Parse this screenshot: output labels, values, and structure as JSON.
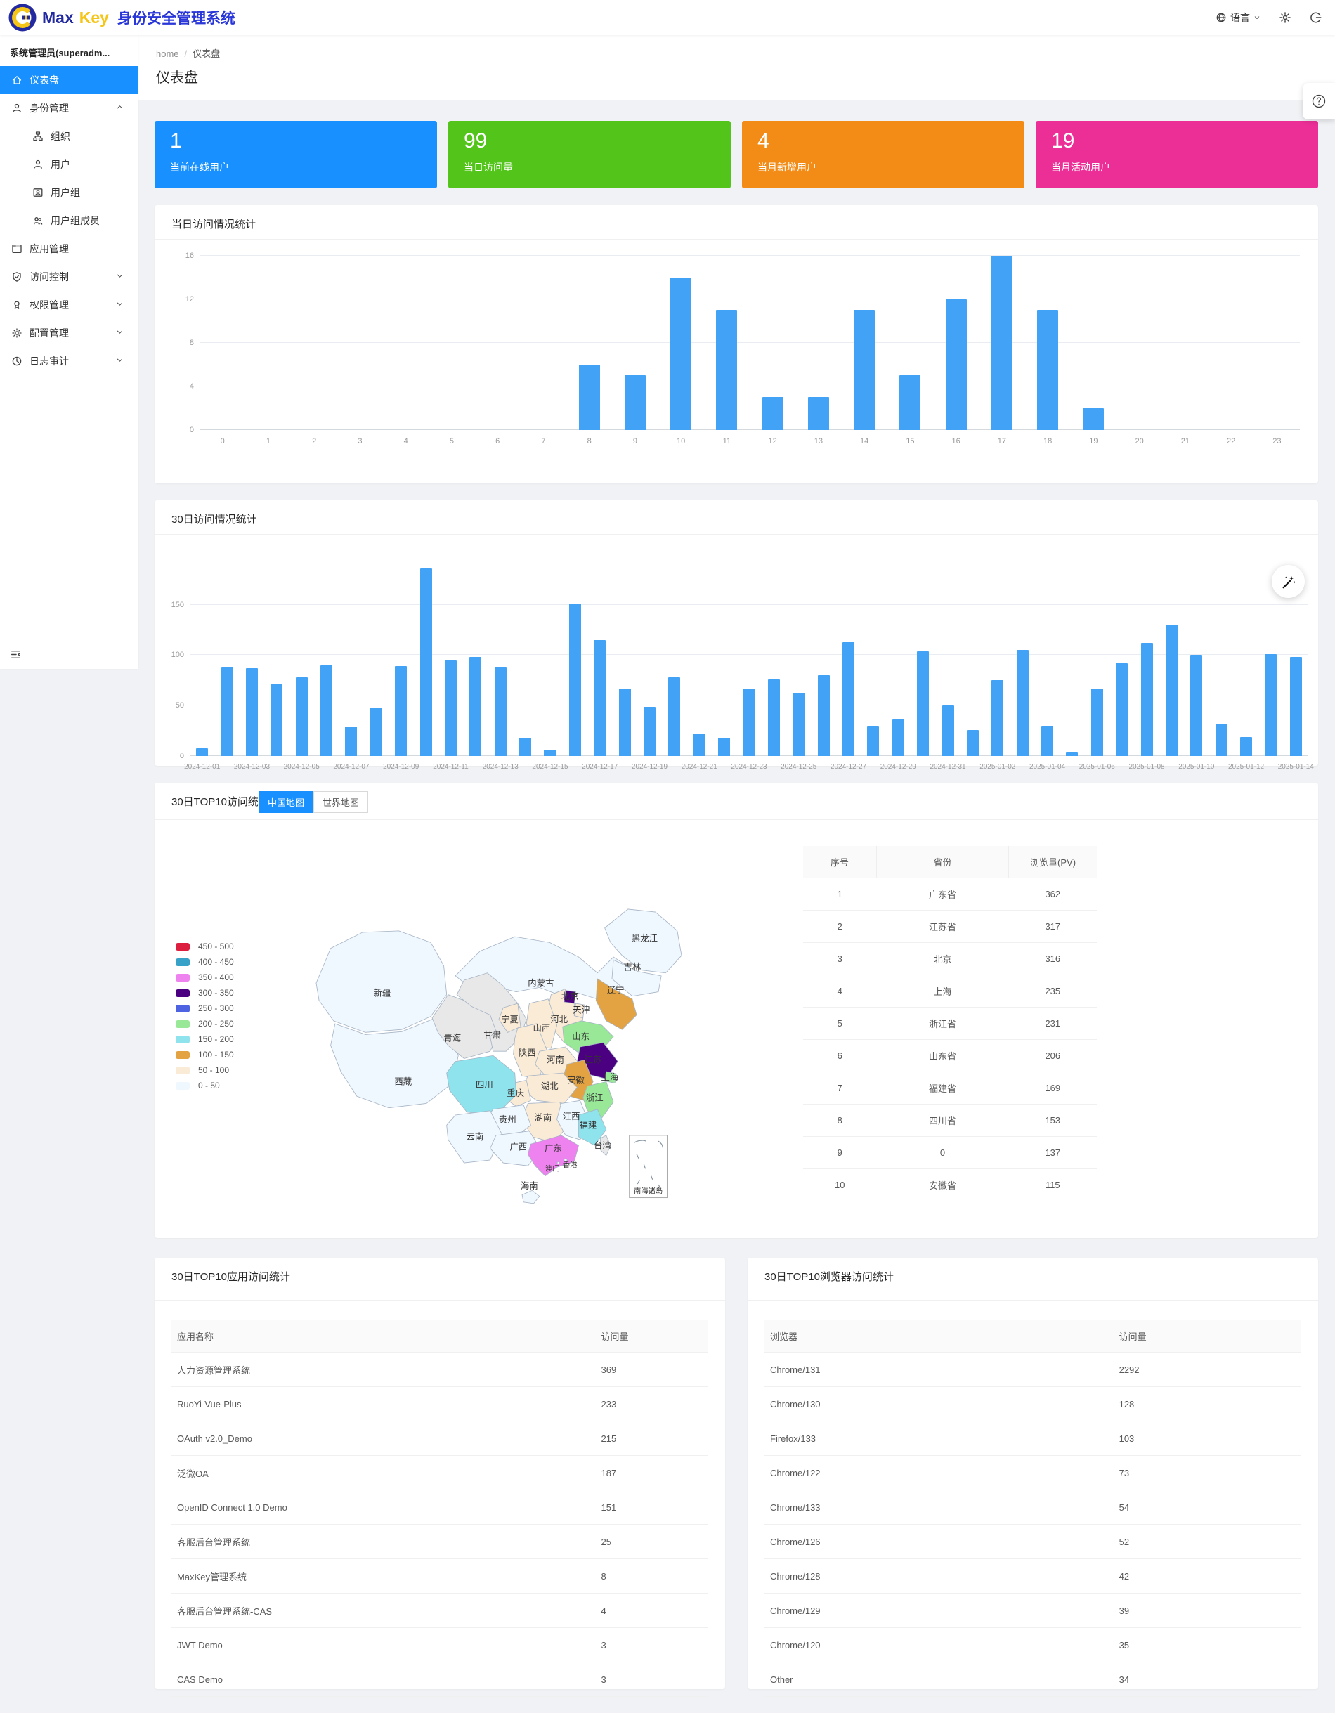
{
  "header": {
    "logo_max": "Max",
    "logo_key": "Key",
    "app_title": "身份安全管理系统",
    "language_label": "语言"
  },
  "sidebar": {
    "user": "系统管理员(superadm...",
    "items": [
      {
        "key": "dashboard",
        "icon": "home",
        "label": "仪表盘",
        "selected": true
      },
      {
        "key": "identity",
        "icon": "user",
        "label": "身份管理",
        "caret": "up"
      },
      {
        "key": "org",
        "icon": "org",
        "label": "组织",
        "sub": true
      },
      {
        "key": "users",
        "icon": "user",
        "label": "用户",
        "sub": true
      },
      {
        "key": "usergroup",
        "icon": "idcard",
        "label": "用户组",
        "sub": true
      },
      {
        "key": "groupmembers",
        "icon": "team",
        "label": "用户组成员",
        "sub": true
      },
      {
        "key": "apps",
        "icon": "appstore",
        "label": "应用管理"
      },
      {
        "key": "access",
        "icon": "shield",
        "label": "访问控制",
        "caret": "down"
      },
      {
        "key": "perm",
        "icon": "medal",
        "label": "权限管理",
        "caret": "down"
      },
      {
        "key": "config",
        "icon": "gear",
        "label": "配置管理",
        "caret": "down"
      },
      {
        "key": "audit",
        "icon": "clock",
        "label": "日志审计",
        "caret": "down"
      }
    ]
  },
  "breadcrumb": {
    "home": "home",
    "sep": "/",
    "current": "仪表盘"
  },
  "page": {
    "title": "仪表盘"
  },
  "stats": [
    {
      "value": "1",
      "label": "当前在线用户",
      "color": "#1890FF"
    },
    {
      "value": "99",
      "label": "当日访问量",
      "color": "#52C41A"
    },
    {
      "value": "4",
      "label": "当月新增用户",
      "color": "#F28C16"
    },
    {
      "value": "19",
      "label": "当月活动用户",
      "color": "#EB2F96"
    }
  ],
  "chart_data": [
    {
      "type": "bar",
      "title": "当日访问情况统计",
      "categories": [
        0,
        1,
        2,
        3,
        4,
        5,
        6,
        7,
        8,
        9,
        10,
        11,
        12,
        13,
        14,
        15,
        16,
        17,
        18,
        19,
        20,
        21,
        22,
        23
      ],
      "values": [
        0,
        0,
        0,
        0,
        0,
        0,
        0,
        0,
        6,
        5,
        14,
        11,
        3,
        3,
        11,
        5,
        12,
        16,
        11,
        2,
        0,
        0,
        0,
        0
      ],
      "xlabel": "",
      "ylabel": "",
      "ylim": [
        0,
        16
      ],
      "yticks": [
        0,
        4,
        8,
        12,
        16
      ],
      "bar_color": "#42A2F5",
      "grid": true
    },
    {
      "type": "bar",
      "title": "30日访问情况统计",
      "categories": [
        "2024-12-01",
        "2024-12-02",
        "2024-12-03",
        "2024-12-04",
        "2024-12-05",
        "2024-12-06",
        "2024-12-07",
        "2024-12-08",
        "2024-12-09",
        "2024-12-10",
        "2024-12-11",
        "2024-12-12",
        "2024-12-13",
        "2024-12-14",
        "2024-12-15",
        "2024-12-16",
        "2024-12-17",
        "2024-12-18",
        "2024-12-19",
        "2024-12-20",
        "2024-12-21",
        "2024-12-22",
        "2024-12-23",
        "2024-12-24",
        "2024-12-25",
        "2024-12-26",
        "2024-12-27",
        "2024-12-28",
        "2024-12-29",
        "2024-12-30",
        "2024-12-31",
        "2025-01-01",
        "2025-01-02",
        "2025-01-03",
        "2025-01-04",
        "2025-01-05",
        "2025-01-06",
        "2025-01-07",
        "2025-01-08",
        "2025-01-09",
        "2025-01-10",
        "2025-01-11",
        "2025-01-12",
        "2025-01-13",
        "2025-01-14"
      ],
      "values": [
        8,
        88,
        87,
        72,
        78,
        90,
        29,
        48,
        89,
        186,
        95,
        98,
        88,
        18,
        6,
        151,
        115,
        67,
        49,
        78,
        22,
        18,
        67,
        76,
        63,
        80,
        113,
        30,
        36,
        104,
        50,
        26,
        75,
        105,
        30,
        4,
        67,
        92,
        112,
        130,
        100,
        32,
        19,
        101,
        98
      ],
      "xlabel": "",
      "ylabel": "",
      "ylim": [
        0,
        195
      ],
      "yticks": [
        0,
        50,
        100,
        150
      ],
      "bar_color": "#42A2F5",
      "grid": true,
      "xtick_every": 2
    },
    {
      "type": "heatmap",
      "subtype": "china-choropleth",
      "title": "30日TOP10访问统计",
      "tabs": [
        "中国地图",
        "世界地图"
      ],
      "active_tab": "中国地图",
      "legend_position": "left",
      "legend": [
        {
          "range": "450 - 500",
          "color": "#DC1F3E"
        },
        {
          "range": "400 - 450",
          "color": "#38A1C7"
        },
        {
          "range": "350 - 400",
          "color": "#EE82EE"
        },
        {
          "range": "300 - 350",
          "color": "#4B0082"
        },
        {
          "range": "250 - 300",
          "color": "#4D63E2"
        },
        {
          "range": "200 - 250",
          "color": "#98E898"
        },
        {
          "range": "150 - 200",
          "color": "#8FE3ED"
        },
        {
          "range": "100 - 150",
          "color": "#E3A343"
        },
        {
          "range": "50 - 100",
          "color": "#FAEBD7"
        },
        {
          "range": "0 - 50",
          "color": "#EFF7FF"
        }
      ],
      "table": {
        "headers": [
          "序号",
          "省份",
          "浏览量(PV)"
        ],
        "rows": [
          [
            "1",
            "广东省",
            "362"
          ],
          [
            "2",
            "江苏省",
            "317"
          ],
          [
            "3",
            "北京",
            "316"
          ],
          [
            "4",
            "上海",
            "235"
          ],
          [
            "5",
            "浙江省",
            "231"
          ],
          [
            "6",
            "山东省",
            "206"
          ],
          [
            "7",
            "福建省",
            "169"
          ],
          [
            "8",
            "四川省",
            "153"
          ],
          [
            "9",
            "0",
            "137"
          ],
          [
            "10",
            "安徽省",
            "115"
          ]
        ]
      }
    },
    {
      "type": "table",
      "title": "30日TOP10应用访问统计",
      "headers": [
        "应用名称",
        "访问量"
      ],
      "rows": [
        [
          "人力资源管理系统",
          "369"
        ],
        [
          "RuoYi-Vue-Plus",
          "233"
        ],
        [
          "OAuth v2.0_Demo",
          "215"
        ],
        [
          "泛微OA",
          "187"
        ],
        [
          "OpenID Connect 1.0 Demo",
          "151"
        ],
        [
          "客服后台管理系统",
          "25"
        ],
        [
          "MaxKey管理系统",
          "8"
        ],
        [
          "客服后台管理系统-CAS",
          "4"
        ],
        [
          "JWT Demo",
          "3"
        ],
        [
          "CAS Demo",
          "3"
        ]
      ]
    },
    {
      "type": "table",
      "title": "30日TOP10浏览器访问统计",
      "headers": [
        "浏览器",
        "访问量"
      ],
      "rows": [
        [
          "Chrome/131",
          "2292"
        ],
        [
          "Chrome/130",
          "128"
        ],
        [
          "Firefox/133",
          "103"
        ],
        [
          "Chrome/122",
          "73"
        ],
        [
          "Chrome/133",
          "54"
        ],
        [
          "Chrome/126",
          "52"
        ],
        [
          "Chrome/128",
          "42"
        ],
        [
          "Chrome/129",
          "39"
        ],
        [
          "Chrome/120",
          "35"
        ],
        [
          "Other",
          "34"
        ]
      ]
    }
  ],
  "map": {
    "inset_label": "南海诸岛",
    "provinces": {
      "heilongjiang": {
        "label": "黑龙江",
        "color": "#EFF7FF"
      },
      "jilin": {
        "label": "吉林",
        "color": "#EFF7FF"
      },
      "liaoning": {
        "label": "辽宁",
        "color": "#E3A343"
      },
      "neimenggu": {
        "label": "内蒙古",
        "color": "#EFF7FF"
      },
      "xinjiang": {
        "label": "新疆",
        "color": "#EFF7FF"
      },
      "xizang": {
        "label": "西藏",
        "color": "#EFF7FF"
      },
      "qinghai": {
        "label": "青海",
        "color": "#E8E8E8"
      },
      "gansu": {
        "label": "甘肃",
        "color": "#E8E8E8"
      },
      "ningxia": {
        "label": "宁夏",
        "color": "#FAEBD7"
      },
      "shaanxi": {
        "label": "陕西",
        "color": "#FAEBD7"
      },
      "shanxi": {
        "label": "山西",
        "color": "#FAEBD7"
      },
      "hebei": {
        "label": "河北",
        "color": "#FAEBD7"
      },
      "beijing": {
        "label": "北京",
        "color": "#4B0082"
      },
      "tianjin": {
        "label": "天津",
        "color": "#FAEBD7"
      },
      "shandong": {
        "label": "山东",
        "color": "#98E898"
      },
      "henan": {
        "label": "河南",
        "color": "#FAEBD7"
      },
      "jiangsu": {
        "label": "江苏",
        "color": "#4B0082"
      },
      "anhui": {
        "label": "安徽",
        "color": "#E3A343"
      },
      "shanghai": {
        "label": "上海",
        "color": "#98E898"
      },
      "zhejiang": {
        "label": "浙江",
        "color": "#98E898"
      },
      "hubei": {
        "label": "湖北",
        "color": "#FAEBD7"
      },
      "chongqing": {
        "label": "重庆",
        "color": "#FAEBD7"
      },
      "sichuan": {
        "label": "四川",
        "color": "#8FE3ED"
      },
      "hunan": {
        "label": "湖南",
        "color": "#FAEBD7"
      },
      "jiangxi": {
        "label": "江西",
        "color": "#EFF7FF"
      },
      "fujian": {
        "label": "福建",
        "color": "#8FE3ED"
      },
      "guizhou": {
        "label": "贵州",
        "color": "#EFF7FF"
      },
      "yunnan": {
        "label": "云南",
        "color": "#EFF7FF"
      },
      "guangxi": {
        "label": "广西",
        "color": "#EFF7FF"
      },
      "guangdong": {
        "label": "广东",
        "color": "#EE82EE"
      },
      "hainan": {
        "label": "海南",
        "color": "#EFF7FF"
      },
      "taiwan": {
        "label": "台湾",
        "color": "#E8E8E8"
      },
      "hongkong": {
        "label": "香港",
        "color": "#EFF7FF"
      },
      "macau": {
        "label": "澳门",
        "color": "#EFF7FF"
      }
    }
  }
}
